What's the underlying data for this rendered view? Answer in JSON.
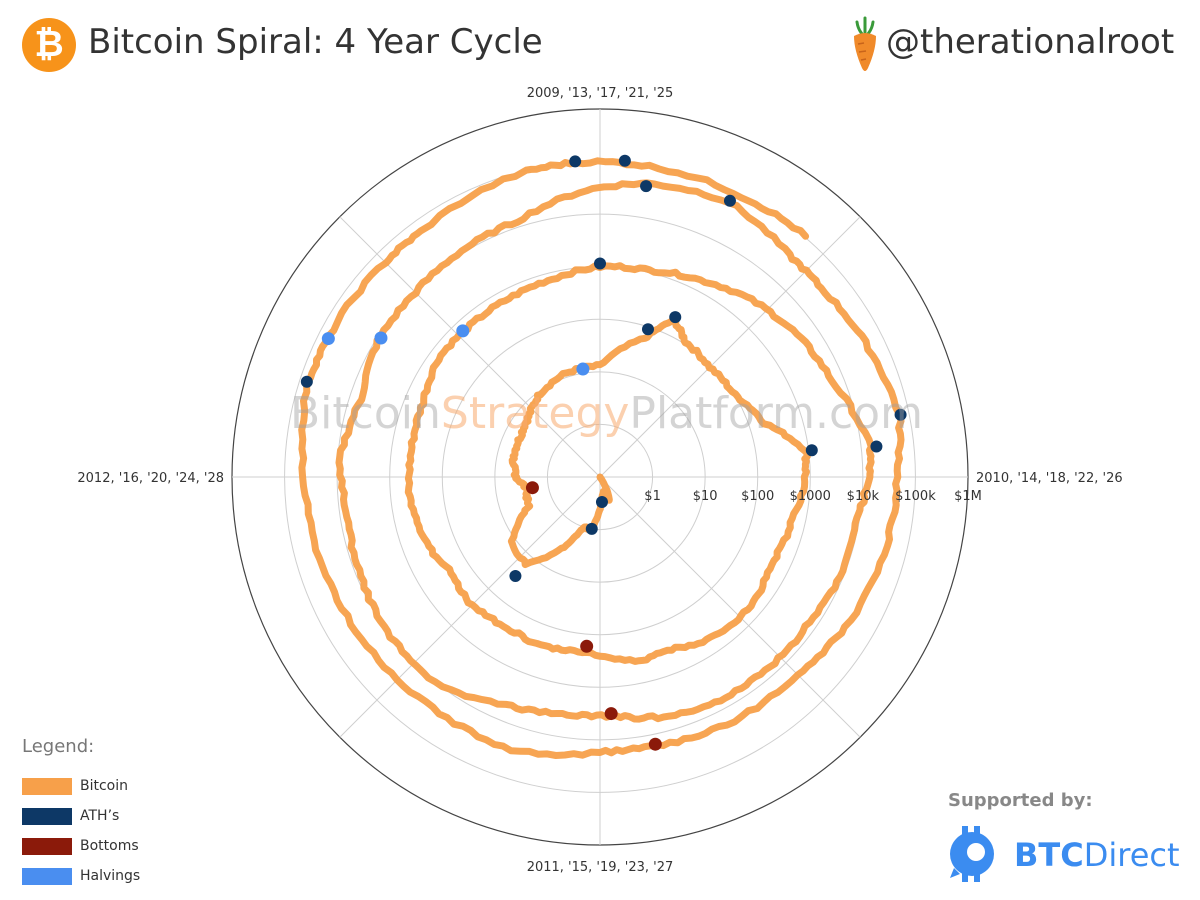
{
  "header": {
    "title": "Bitcoin Spiral: 4 Year Cycle",
    "handle": "@therationalroot",
    "logo_glyph": "₿"
  },
  "watermark": {
    "part1": "Bitcoin",
    "part2": "Strategy",
    "part3": "Platform.com"
  },
  "legend": {
    "title": "Legend:",
    "items": [
      {
        "label": "Bitcoin",
        "color": "#f7a04a"
      },
      {
        "label": "ATH’s",
        "color": "#0d3866"
      },
      {
        "label": "Bottoms",
        "color": "#8b1a0a"
      },
      {
        "label": "Halvings",
        "color": "#4a8ef0"
      }
    ]
  },
  "sponsor": {
    "label": "Supported by:",
    "brand_bold": "BTC",
    "brand_rest": "Direct",
    "color": "#3b8cf0"
  },
  "chart_data": {
    "type": "polar-spiral",
    "angular_period_years": 4,
    "angular_labels": [
      {
        "angle_deg": 0,
        "text": "2009, '13, '17, '21, '25"
      },
      {
        "angle_deg": 90,
        "text": "2010, '14, '18, '22, '26"
      },
      {
        "angle_deg": 180,
        "text": "2011, '15, '19, '23, '27"
      },
      {
        "angle_deg": 270,
        "text": "2012, '16, '20, '24, '28"
      }
    ],
    "radial_axis": {
      "scale": "log",
      "range": [
        0.1,
        1000000
      ],
      "tick_values": [
        1,
        10,
        100,
        1000,
        10000,
        100000,
        1000000
      ],
      "tick_labels": [
        "$1",
        "$10",
        "$100",
        "$1000",
        "$10k",
        "$100k",
        "$1M"
      ]
    },
    "series": [
      {
        "name": "Bitcoin",
        "color": "#f7a04a"
      },
      {
        "name": "ATH’s",
        "color": "#0d3866"
      },
      {
        "name": "Bottoms",
        "color": "#8b1a0a"
      },
      {
        "name": "Halvings",
        "color": "#4a8ef0"
      }
    ],
    "bitcoin_path": [
      [
        2010.55,
        0.06
      ],
      [
        2010.75,
        0.3
      ],
      [
        2010.85,
        0.2
      ],
      [
        2010.95,
        0.25
      ],
      [
        2011.1,
        1
      ],
      [
        2011.2,
        1
      ],
      [
        2011.3,
        3
      ],
      [
        2011.45,
        15
      ],
      [
        2011.6,
        12
      ],
      [
        2011.75,
        3
      ],
      [
        2011.9,
        2.5
      ],
      [
        2012.0,
        4
      ],
      [
        2012.15,
        5
      ],
      [
        2012.3,
        5
      ],
      [
        2012.45,
        6
      ],
      [
        2012.6,
        9
      ],
      [
        2012.8,
        12
      ],
      [
        2013.0,
        13
      ],
      [
        2013.2,
        60
      ],
      [
        2013.28,
        200
      ],
      [
        2013.36,
        110
      ],
      [
        2013.5,
        90
      ],
      [
        2013.65,
        100
      ],
      [
        2013.8,
        200
      ],
      [
        2013.92,
        900
      ],
      [
        2014.0,
        800
      ],
      [
        2014.15,
        550
      ],
      [
        2014.3,
        450
      ],
      [
        2014.45,
        600
      ],
      [
        2014.6,
        550
      ],
      [
        2014.75,
        350
      ],
      [
        2014.88,
        370
      ],
      [
        2015.05,
        220
      ],
      [
        2015.2,
        250
      ],
      [
        2015.35,
        230
      ],
      [
        2015.5,
        280
      ],
      [
        2015.65,
        240
      ],
      [
        2015.8,
        380
      ],
      [
        2015.95,
        430
      ],
      [
        2016.1,
        420
      ],
      [
        2016.25,
        450
      ],
      [
        2016.4,
        650
      ],
      [
        2016.55,
        620
      ],
      [
        2016.7,
        650
      ],
      [
        2016.85,
        750
      ],
      [
        2017.0,
        1000
      ],
      [
        2017.15,
        1100
      ],
      [
        2017.3,
        1600
      ],
      [
        2017.45,
        2700
      ],
      [
        2017.6,
        4200
      ],
      [
        2017.75,
        6000
      ],
      [
        2017.93,
        15000
      ],
      [
        2018.0,
        13000
      ],
      [
        2018.1,
        9000
      ],
      [
        2018.25,
        9000
      ],
      [
        2018.4,
        7000
      ],
      [
        2018.55,
        7000
      ],
      [
        2018.7,
        6500
      ],
      [
        2018.85,
        5000
      ],
      [
        2018.97,
        3500
      ],
      [
        2019.1,
        3600
      ],
      [
        2019.25,
        5000
      ],
      [
        2019.45,
        11000
      ],
      [
        2019.6,
        10000
      ],
      [
        2019.75,
        8500
      ],
      [
        2019.9,
        7200
      ],
      [
        2020.05,
        9000
      ],
      [
        2020.2,
        6000
      ],
      [
        2020.35,
        9000
      ],
      [
        2020.5,
        9300
      ],
      [
        2020.65,
        11000
      ],
      [
        2020.8,
        13000
      ],
      [
        2020.97,
        29000
      ],
      [
        2021.1,
        45000
      ],
      [
        2021.28,
        60000
      ],
      [
        2021.45,
        35000
      ],
      [
        2021.55,
        34000
      ],
      [
        2021.7,
        45000
      ],
      [
        2021.87,
        65000
      ],
      [
        2022.0,
        45000
      ],
      [
        2022.15,
        40000
      ],
      [
        2022.35,
        30000
      ],
      [
        2022.5,
        20000
      ],
      [
        2022.7,
        19500
      ],
      [
        2022.87,
        16500
      ],
      [
        2023.0,
        17000
      ],
      [
        2023.2,
        28000
      ],
      [
        2023.4,
        27000
      ],
      [
        2023.6,
        29000
      ],
      [
        2023.8,
        35000
      ],
      [
        2024.0,
        43000
      ],
      [
        2024.2,
        70000
      ],
      [
        2024.3,
        64000
      ],
      [
        2024.5,
        60000
      ],
      [
        2024.6,
        60000
      ],
      [
        2024.85,
        95000
      ],
      [
        2024.95,
        100000
      ],
      [
        2025.1,
        96000
      ],
      [
        2025.3,
        95000
      ],
      [
        2025.45,
        105000
      ]
    ],
    "aths": [
      [
        2010.95,
        0.3
      ],
      [
        2011.1,
        1
      ],
      [
        2011.45,
        30
      ],
      [
        2013.2,
        90
      ],
      [
        2013.28,
        230
      ],
      [
        2013.92,
        1150
      ],
      [
        2017.0,
        1150
      ],
      [
        2017.93,
        19500
      ],
      [
        2021.1,
        40000
      ],
      [
        2021.28,
        64000
      ],
      [
        2021.87,
        69000
      ],
      [
        2024.2,
        73000
      ],
      [
        2024.95,
        105000
      ],
      [
        2025.05,
        108000
      ]
    ],
    "bottoms": [
      [
        2011.9,
        2.0
      ],
      [
        2015.05,
        170
      ],
      [
        2018.97,
        3200
      ],
      [
        2022.87,
        15500
      ]
    ],
    "halvings": [
      [
        2012.9,
        12
      ],
      [
        2016.52,
        650
      ],
      [
        2020.36,
        8600
      ],
      [
        2024.3,
        63000
      ]
    ]
  }
}
